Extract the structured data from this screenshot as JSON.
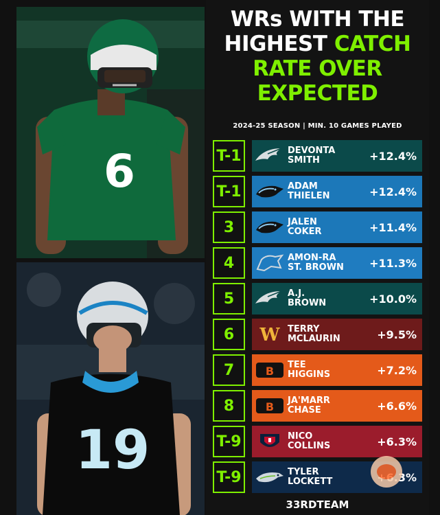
{
  "header": {
    "title_line1": "WRs WITH THE",
    "title_line2_a": "HIGHEST ",
    "title_line2_b": "CATCH",
    "title_line3": "RATE OVER",
    "title_line4": "EXPECTED",
    "subtitle": "2024-25 SEASON | MIN. 10 GAMES PLAYED"
  },
  "colors": {
    "accent": "#7ff000"
  },
  "rows": [
    {
      "rank": "T-1",
      "name1": "DEVONTA",
      "name2": "SMITH",
      "value": "+12.4%",
      "team": "eagles",
      "color": "#0b4a4a"
    },
    {
      "rank": "T-1",
      "name1": "ADAM",
      "name2": "THIELEN",
      "value": "+12.4%",
      "team": "panthers",
      "color": "#1c78b9"
    },
    {
      "rank": "3",
      "name1": "JALEN",
      "name2": "COKER",
      "value": "+11.4%",
      "team": "panthers",
      "color": "#1c78b9"
    },
    {
      "rank": "4",
      "name1": "AMON-RA",
      "name2": "ST. BROWN",
      "value": "+11.3%",
      "team": "lions",
      "color": "#1f7cc0"
    },
    {
      "rank": "5",
      "name1": "A.J.",
      "name2": "BROWN",
      "value": "+10.0%",
      "team": "eagles",
      "color": "#0b4a4a"
    },
    {
      "rank": "6",
      "name1": "TERRY",
      "name2": "MCLAURIN",
      "value": "+9.5%",
      "team": "commanders",
      "color": "#6e1b1b"
    },
    {
      "rank": "7",
      "name1": "TEE",
      "name2": "HIGGINS",
      "value": "+7.2%",
      "team": "bengals",
      "color": "#e45a1a"
    },
    {
      "rank": "8",
      "name1": "JA'MARR",
      "name2": "CHASE",
      "value": "+6.6%",
      "team": "bengals",
      "color": "#e45a1a"
    },
    {
      "rank": "T-9",
      "name1": "NICO",
      "name2": "COLLINS",
      "value": "+6.3%",
      "team": "texans",
      "color": "#9b1c2c"
    },
    {
      "rank": "T-9",
      "name1": "TYLER",
      "name2": "LOCKETT",
      "value": "+6.3%",
      "team": "seahawks",
      "color": "#0e2a4a"
    }
  ],
  "footer": {
    "brand": "33RDTEAM"
  },
  "photos": {
    "top_jersey": "6",
    "bottom_jersey": "19"
  }
}
